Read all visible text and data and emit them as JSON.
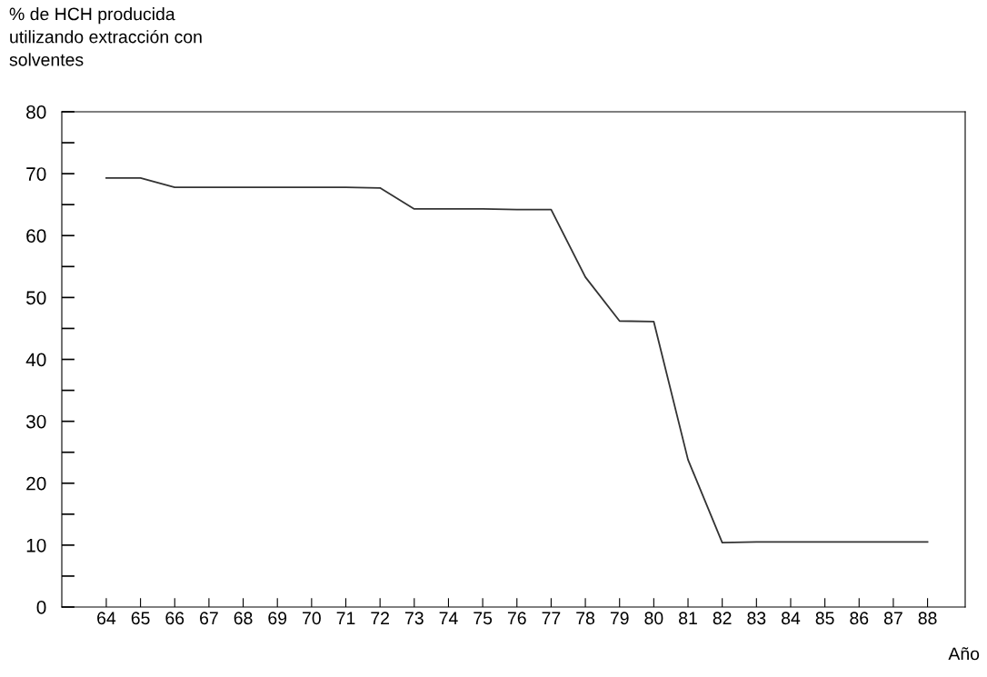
{
  "chart_data": {
    "type": "line",
    "ylabel": "% de HCH producida\nutilizando extracción con\nsolventes",
    "xlabel": "Año",
    "x": [
      64,
      65,
      66,
      67,
      68,
      69,
      70,
      71,
      72,
      73,
      74,
      75,
      76,
      77,
      78,
      79,
      80,
      81,
      82,
      83,
      84,
      85,
      86,
      87,
      88
    ],
    "series": [
      {
        "color": "#333333",
        "values": [
          69.3,
          69.3,
          67.8,
          67.8,
          67.8,
          67.8,
          67.8,
          67.8,
          67.7,
          64.3,
          64.3,
          64.3,
          64.2,
          64.2,
          53.3,
          46.2,
          46.1,
          23.8,
          10.4,
          10.5,
          10.5,
          10.5,
          10.5,
          10.5,
          10.5
        ]
      }
    ],
    "xlim": [
      62.7,
      89.1
    ],
    "xticks": [
      64,
      65,
      66,
      67,
      68,
      69,
      70,
      71,
      72,
      73,
      74,
      75,
      76,
      77,
      78,
      79,
      80,
      81,
      82,
      83,
      84,
      85,
      86,
      87,
      88
    ],
    "ylim": [
      0,
      80
    ],
    "yticks": [
      0,
      {
        "value": 5,
        "label": null
      },
      10,
      {
        "value": 15,
        "label": null
      },
      20,
      {
        "value": 25,
        "label": null
      },
      30,
      {
        "value": 35,
        "label": null
      },
      40,
      {
        "value": 45,
        "label": null
      },
      50,
      {
        "value": 55,
        "label": null
      },
      60,
      {
        "value": 65,
        "label": null
      },
      70,
      {
        "value": 75,
        "label": null
      },
      80
    ],
    "grid": false,
    "legend": false,
    "marker": "none",
    "line_style": "solid"
  }
}
